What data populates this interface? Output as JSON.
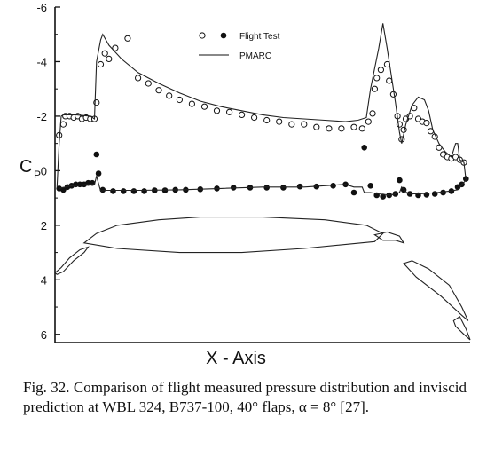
{
  "chart_data": {
    "type": "scatter",
    "title": "",
    "xlabel": "X - Axis",
    "ylabel": "C",
    "ylabel_sub": "P",
    "ylim": [
      -6,
      6.3
    ],
    "y_inverted": true,
    "yticks": [
      -6,
      -4,
      -2,
      0,
      2,
      4,
      6
    ],
    "ytick_labels": [
      "-6",
      "-4",
      "-2",
      "0",
      "2",
      "4",
      "6"
    ],
    "xlim": [
      0,
      1
    ],
    "legend": {
      "position": "top-center",
      "entries": [
        "Flight Test",
        "PMARC"
      ]
    },
    "series": [
      {
        "name": "Flight Test",
        "kind": "upper-surface-open",
        "points": [
          [
            0.01,
            -1.3
          ],
          [
            0.02,
            -1.7
          ],
          [
            0.025,
            -2.0
          ],
          [
            0.035,
            -2.0
          ],
          [
            0.045,
            -1.95
          ],
          [
            0.055,
            -2.0
          ],
          [
            0.065,
            -1.9
          ],
          [
            0.075,
            -1.95
          ],
          [
            0.085,
            -1.9
          ],
          [
            0.095,
            -1.9
          ],
          [
            0.1,
            -2.5
          ],
          [
            0.11,
            -3.9
          ],
          [
            0.12,
            -4.3
          ],
          [
            0.13,
            -4.1
          ],
          [
            0.145,
            -4.5
          ],
          [
            0.175,
            -4.85
          ],
          [
            0.2,
            -3.4
          ],
          [
            0.225,
            -3.2
          ],
          [
            0.25,
            -2.95
          ],
          [
            0.275,
            -2.75
          ],
          [
            0.3,
            -2.6
          ],
          [
            0.33,
            -2.45
          ],
          [
            0.36,
            -2.35
          ],
          [
            0.39,
            -2.2
          ],
          [
            0.42,
            -2.15
          ],
          [
            0.45,
            -2.05
          ],
          [
            0.48,
            -1.95
          ],
          [
            0.51,
            -1.85
          ],
          [
            0.54,
            -1.8
          ],
          [
            0.57,
            -1.7
          ],
          [
            0.6,
            -1.7
          ],
          [
            0.63,
            -1.6
          ],
          [
            0.66,
            -1.55
          ],
          [
            0.69,
            -1.55
          ],
          [
            0.72,
            -1.6
          ],
          [
            0.74,
            -1.55
          ],
          [
            0.755,
            -1.8
          ],
          [
            0.765,
            -2.1
          ],
          [
            0.77,
            -3.0
          ],
          [
            0.775,
            -3.4
          ],
          [
            0.785,
            -3.7
          ],
          [
            0.8,
            -3.9
          ],
          [
            0.805,
            -3.3
          ],
          [
            0.815,
            -2.8
          ],
          [
            0.825,
            -2.0
          ],
          [
            0.83,
            -1.7
          ],
          [
            0.835,
            -1.15
          ],
          [
            0.84,
            -1.5
          ],
          [
            0.845,
            -1.9
          ],
          [
            0.855,
            -2.0
          ],
          [
            0.865,
            -2.3
          ],
          [
            0.875,
            -1.9
          ],
          [
            0.885,
            -1.8
          ],
          [
            0.895,
            -1.75
          ],
          [
            0.905,
            -1.45
          ],
          [
            0.915,
            -1.25
          ],
          [
            0.925,
            -0.85
          ],
          [
            0.935,
            -0.6
          ],
          [
            0.945,
            -0.5
          ],
          [
            0.955,
            -0.45
          ],
          [
            0.965,
            -0.5
          ],
          [
            0.975,
            -0.4
          ],
          [
            0.985,
            -0.3
          ]
        ]
      },
      {
        "name": "Flight Test",
        "kind": "lower-surface-filled",
        "points": [
          [
            0.01,
            0.65
          ],
          [
            0.02,
            0.7
          ],
          [
            0.03,
            0.6
          ],
          [
            0.04,
            0.55
          ],
          [
            0.05,
            0.5
          ],
          [
            0.06,
            0.5
          ],
          [
            0.07,
            0.5
          ],
          [
            0.08,
            0.45
          ],
          [
            0.09,
            0.45
          ],
          [
            0.1,
            -0.6
          ],
          [
            0.105,
            0.1
          ],
          [
            0.115,
            0.7
          ],
          [
            0.14,
            0.75
          ],
          [
            0.165,
            0.75
          ],
          [
            0.19,
            0.75
          ],
          [
            0.215,
            0.75
          ],
          [
            0.24,
            0.72
          ],
          [
            0.265,
            0.72
          ],
          [
            0.29,
            0.7
          ],
          [
            0.315,
            0.7
          ],
          [
            0.35,
            0.68
          ],
          [
            0.39,
            0.65
          ],
          [
            0.43,
            0.62
          ],
          [
            0.47,
            0.62
          ],
          [
            0.51,
            0.62
          ],
          [
            0.55,
            0.62
          ],
          [
            0.59,
            0.58
          ],
          [
            0.63,
            0.58
          ],
          [
            0.67,
            0.55
          ],
          [
            0.7,
            0.5
          ],
          [
            0.72,
            0.8
          ],
          [
            0.745,
            -0.85
          ],
          [
            0.76,
            0.55
          ],
          [
            0.775,
            0.9
          ],
          [
            0.79,
            0.95
          ],
          [
            0.805,
            0.9
          ],
          [
            0.82,
            0.85
          ],
          [
            0.83,
            0.35
          ],
          [
            0.84,
            0.7
          ],
          [
            0.855,
            0.85
          ],
          [
            0.875,
            0.9
          ],
          [
            0.895,
            0.88
          ],
          [
            0.915,
            0.85
          ],
          [
            0.935,
            0.8
          ],
          [
            0.955,
            0.75
          ],
          [
            0.97,
            0.6
          ],
          [
            0.98,
            0.5
          ],
          [
            0.99,
            0.3
          ]
        ]
      },
      {
        "name": "PMARC",
        "kind": "line",
        "points": [
          [
            0.005,
            0.6
          ],
          [
            0.01,
            -1.0
          ],
          [
            0.015,
            -2.0
          ],
          [
            0.02,
            -2.05
          ],
          [
            0.05,
            -2.05
          ],
          [
            0.085,
            -2.0
          ],
          [
            0.095,
            -1.9
          ],
          [
            0.1,
            -4.0
          ],
          [
            0.11,
            -4.8
          ],
          [
            0.115,
            -5.0
          ],
          [
            0.13,
            -4.6
          ],
          [
            0.16,
            -4.1
          ],
          [
            0.2,
            -3.6
          ],
          [
            0.25,
            -3.2
          ],
          [
            0.3,
            -2.85
          ],
          [
            0.35,
            -2.55
          ],
          [
            0.4,
            -2.35
          ],
          [
            0.45,
            -2.2
          ],
          [
            0.5,
            -2.05
          ],
          [
            0.55,
            -1.95
          ],
          [
            0.6,
            -1.9
          ],
          [
            0.65,
            -1.85
          ],
          [
            0.7,
            -1.8
          ],
          [
            0.73,
            -1.85
          ],
          [
            0.75,
            -1.95
          ],
          [
            0.76,
            -3.0
          ],
          [
            0.78,
            -4.5
          ],
          [
            0.79,
            -5.4
          ],
          [
            0.8,
            -4.5
          ],
          [
            0.81,
            -3.5
          ],
          [
            0.82,
            -2.5
          ],
          [
            0.83,
            -1.4
          ],
          [
            0.835,
            -1.0
          ],
          [
            0.845,
            -1.7
          ],
          [
            0.86,
            -2.4
          ],
          [
            0.875,
            -2.7
          ],
          [
            0.89,
            -2.6
          ],
          [
            0.9,
            -2.2
          ],
          [
            0.91,
            -1.5
          ],
          [
            0.925,
            -1.0
          ],
          [
            0.94,
            -0.7
          ],
          [
            0.955,
            -0.5
          ],
          [
            0.965,
            -1.0
          ],
          [
            0.97,
            -1.0
          ],
          [
            0.975,
            -0.4
          ],
          [
            0.985,
            -0.3
          ],
          [
            0.99,
            0.35
          ],
          [
            0.98,
            0.5
          ],
          [
            0.97,
            0.7
          ],
          [
            0.95,
            0.75
          ],
          [
            0.92,
            0.8
          ],
          [
            0.88,
            0.85
          ],
          [
            0.85,
            0.85
          ],
          [
            0.835,
            0.6
          ],
          [
            0.83,
            0.8
          ],
          [
            0.81,
            0.9
          ],
          [
            0.78,
            0.85
          ],
          [
            0.76,
            0.8
          ],
          [
            0.745,
            0.8
          ],
          [
            0.74,
            0.6
          ],
          [
            0.72,
            0.6
          ],
          [
            0.7,
            0.5
          ],
          [
            0.65,
            0.55
          ],
          [
            0.6,
            0.6
          ],
          [
            0.5,
            0.6
          ],
          [
            0.4,
            0.65
          ],
          [
            0.3,
            0.7
          ],
          [
            0.2,
            0.72
          ],
          [
            0.12,
            0.72
          ],
          [
            0.11,
            0.75
          ],
          [
            0.1,
            0.2
          ],
          [
            0.095,
            0.5
          ],
          [
            0.08,
            0.5
          ],
          [
            0.04,
            0.55
          ],
          [
            0.01,
            0.65
          ]
        ]
      }
    ],
    "geometry": [
      {
        "part": "slat",
        "points": [
          [
            0.0,
            3.75
          ],
          [
            0.015,
            3.55
          ],
          [
            0.035,
            3.2
          ],
          [
            0.06,
            2.9
          ],
          [
            0.08,
            2.8
          ],
          [
            0.07,
            3.0
          ],
          [
            0.045,
            3.3
          ],
          [
            0.02,
            3.7
          ],
          [
            0.005,
            3.8
          ]
        ]
      },
      {
        "part": "main-element",
        "points": [
          [
            0.07,
            2.65
          ],
          [
            0.1,
            2.3
          ],
          [
            0.15,
            2.0
          ],
          [
            0.25,
            1.8
          ],
          [
            0.35,
            1.7
          ],
          [
            0.5,
            1.7
          ],
          [
            0.65,
            1.8
          ],
          [
            0.75,
            2.0
          ],
          [
            0.79,
            2.3
          ],
          [
            0.77,
            2.6
          ],
          [
            0.6,
            2.85
          ],
          [
            0.45,
            3.0
          ],
          [
            0.3,
            3.0
          ],
          [
            0.15,
            2.85
          ],
          [
            0.07,
            2.65
          ]
        ]
      },
      {
        "part": "fore-flap",
        "points": [
          [
            0.77,
            2.35
          ],
          [
            0.8,
            2.25
          ],
          [
            0.83,
            2.4
          ],
          [
            0.84,
            2.65
          ],
          [
            0.82,
            2.55
          ],
          [
            0.79,
            2.55
          ],
          [
            0.77,
            2.35
          ]
        ]
      },
      {
        "part": "main-flap",
        "points": [
          [
            0.84,
            3.4
          ],
          [
            0.86,
            3.3
          ],
          [
            0.9,
            3.6
          ],
          [
            0.95,
            4.2
          ],
          [
            0.98,
            5.0
          ],
          [
            0.995,
            5.5
          ],
          [
            0.98,
            5.3
          ],
          [
            0.93,
            4.6
          ],
          [
            0.87,
            3.9
          ],
          [
            0.84,
            3.4
          ]
        ]
      },
      {
        "part": "aft-flap",
        "points": [
          [
            0.96,
            5.5
          ],
          [
            0.975,
            5.35
          ],
          [
            0.99,
            5.8
          ],
          [
            1.0,
            6.2
          ],
          [
            0.985,
            6.0
          ],
          [
            0.965,
            5.7
          ],
          [
            0.96,
            5.5
          ]
        ]
      }
    ]
  },
  "caption": "Fig. 32. Comparison of flight measured pressure distribution and inviscid prediction at WBL 324, B737-100, 40° flaps, α = 8° [27]."
}
